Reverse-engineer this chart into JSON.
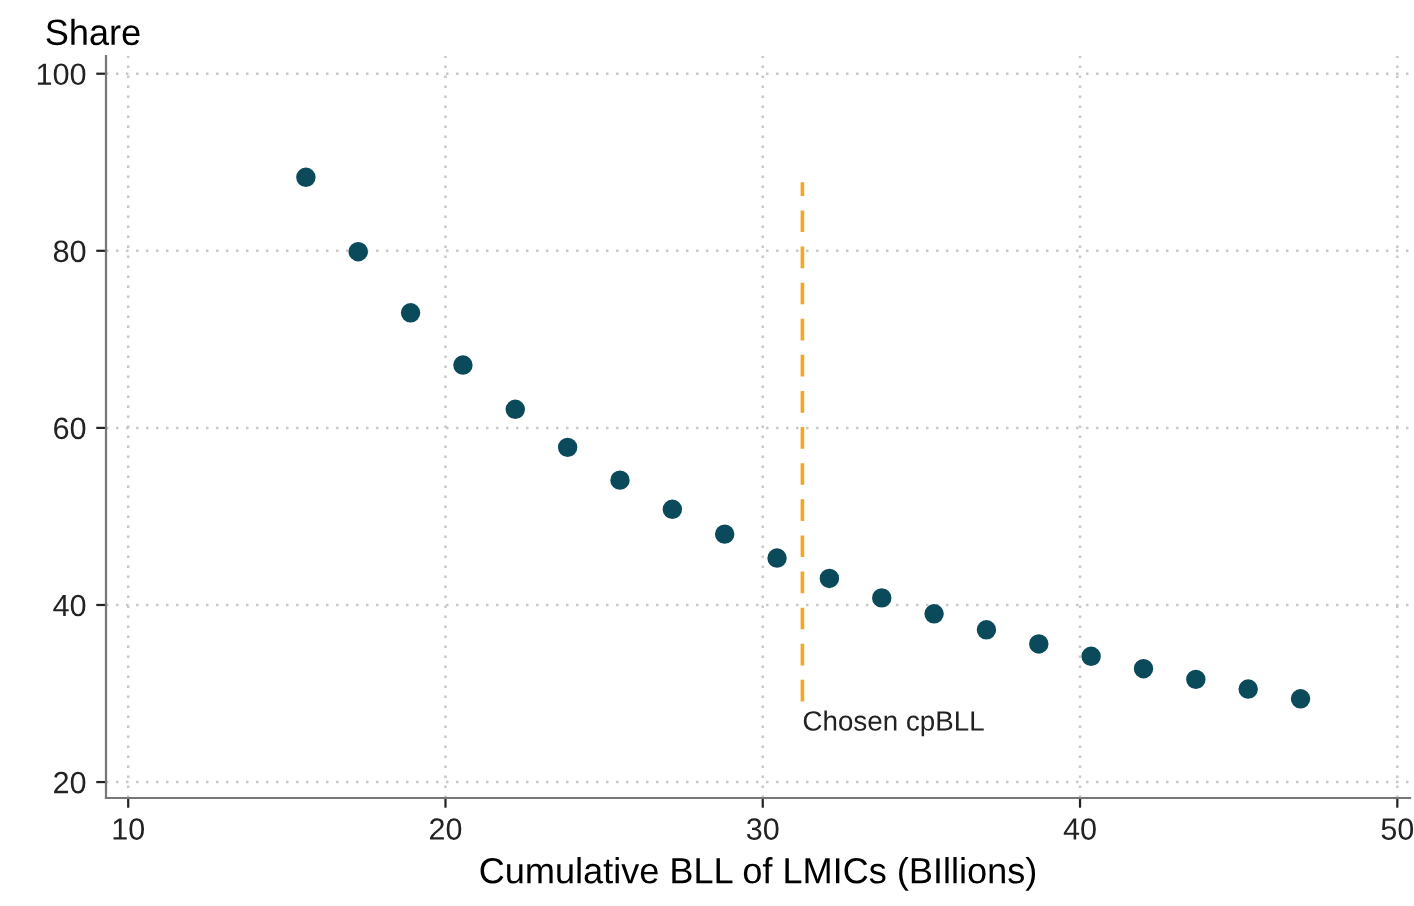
{
  "chart_data": {
    "type": "scatter",
    "xlabel": "Cumulative BLL of LMICs (BIllions)",
    "ylabel": "Share",
    "x": [
      15.6,
      17.25,
      18.9,
      20.55,
      22.2,
      23.85,
      25.5,
      27.15,
      28.8,
      30.45,
      32.1,
      33.75,
      35.4,
      37.05,
      38.7,
      40.35,
      42.0,
      43.65,
      45.3,
      46.95
    ],
    "series": [
      {
        "color": "#0b4a5a",
        "values": [
          88.3,
          79.9,
          73.0,
          67.1,
          62.1,
          57.8,
          54.1,
          50.8,
          48.0,
          45.3,
          43.0,
          40.8,
          39.0,
          37.2,
          35.6,
          34.2,
          32.8,
          31.6,
          30.5,
          29.4
        ]
      }
    ],
    "marker": "circle",
    "xlim": [
      9.3,
      50.4
    ],
    "ylim": [
      18.2,
      102
    ],
    "xticks": [
      10,
      20,
      30,
      40,
      50
    ],
    "yticks": [
      20,
      40,
      60,
      80,
      100
    ],
    "grid": true,
    "ref_lines": [
      {
        "axis": "x",
        "value": 31.25,
        "label": "Chosen cpBLL",
        "color": "#f5a623",
        "line_style": "dashed"
      }
    ]
  }
}
